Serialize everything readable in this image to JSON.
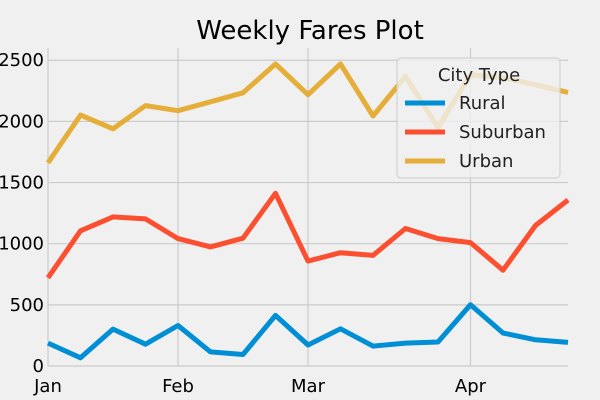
{
  "chart_data": {
    "type": "line",
    "title": "Weekly Fares Plot",
    "xlabel": "",
    "ylabel": "",
    "x_tick_labels": [
      "Jan",
      "Feb",
      "Mar",
      "Apr"
    ],
    "y_ticks": [
      0,
      500,
      1000,
      1500,
      2000,
      2500
    ],
    "y_tick_labels": [
      "0",
      "500",
      "1000",
      "1500",
      "2000",
      "2500"
    ],
    "ylim": [
      0,
      2600
    ],
    "grid": true,
    "legend": {
      "title": "City Type",
      "placement": "top-right"
    },
    "series": [
      {
        "name": "Rural",
        "color": "#008fd5",
        "values": [
          187,
          67,
          302,
          178,
          331,
          115,
          94,
          414,
          172,
          304,
          163,
          187,
          196,
          501,
          270,
          214,
          193
        ]
      },
      {
        "name": "Suburban",
        "color": "#fc4f30",
        "values": [
          721,
          1105,
          1219,
          1203,
          1042,
          974,
          1045,
          1412,
          858,
          926,
          904,
          1124,
          1042,
          1009,
          783,
          1149,
          1357
        ]
      },
      {
        "name": "Urban",
        "color": "#e5ae38",
        "values": [
          1661,
          2051,
          1939,
          2129,
          2087,
          2160,
          2234,
          2469,
          2218,
          2470,
          2044,
          2368,
          1950,
          2382,
          2358,
          2299,
          2237
        ]
      }
    ]
  }
}
